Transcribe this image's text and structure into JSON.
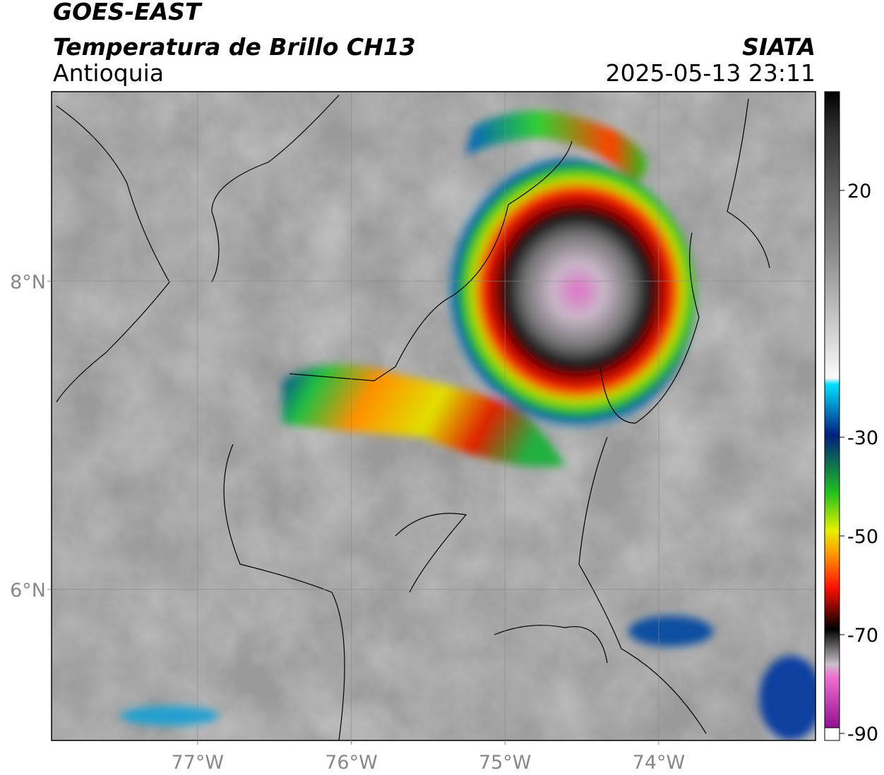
{
  "header": {
    "title": "GOES-EAST",
    "subtitle": "Temperatura de Brillo CH13",
    "region": "Antioquia",
    "source": "SIATA",
    "datetime": "2025-05-13 23:11"
  },
  "map": {
    "xlim": [
      -77.95,
      -72.98
    ],
    "ylim": [
      5.02,
      9.23
    ],
    "xticks": [
      {
        "value": -77,
        "label": "77°W"
      },
      {
        "value": -76,
        "label": "76°W"
      },
      {
        "value": -75,
        "label": "75°W"
      },
      {
        "value": -74,
        "label": "74°W"
      }
    ],
    "yticks": [
      {
        "value": 8,
        "label": "8°N"
      },
      {
        "value": 6,
        "label": "6°N"
      }
    ],
    "grid": true,
    "colorbar": {
      "lim": [
        -90,
        40
      ],
      "ticks": [
        20,
        -30,
        -50,
        -70,
        -90
      ]
    }
  }
}
